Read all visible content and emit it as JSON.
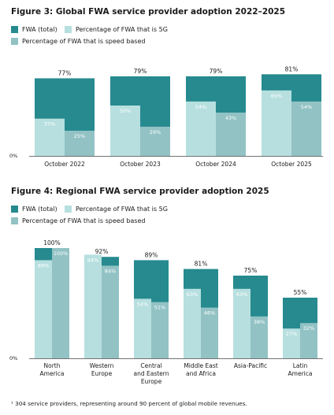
{
  "footnote": "¹ 304 service providers, representing around 90 percent of global mobile revenues.",
  "colors": {
    "total": "#268a8f",
    "fivegee": "#b7dfdf",
    "speed": "#92c2c4",
    "axis": "#444444"
  },
  "legend": {
    "total": "FWA (total)",
    "fivegee": "Percentage of FWA that is 5G",
    "speed": "Percentage of FWA that is speed based"
  },
  "chart_data": [
    {
      "type": "bar",
      "title": "Figure 3: Global FWA service provider adoption 2022–2025",
      "categories": [
        "October 2022",
        "October 2023",
        "October 2024",
        "October 2025"
      ],
      "series": [
        {
          "name": "FWA (total)",
          "values": [
            77,
            79,
            79,
            81
          ]
        },
        {
          "name": "Percentage of FWA that is 5G",
          "values": [
            37,
            50,
            54,
            65
          ]
        },
        {
          "name": "Percentage of FWA that is speed based",
          "values": [
            25,
            29,
            43,
            54
          ]
        }
      ],
      "ytick": "0%",
      "ylim": [
        0,
        100
      ],
      "legend_position": "top-left"
    },
    {
      "type": "bar",
      "title": "Figure 4: Regional FWA service provider adoption 2025",
      "categories": [
        [
          "North",
          "America"
        ],
        [
          "Western",
          "Europe"
        ],
        [
          "Central",
          "and Eastern",
          "Europe"
        ],
        [
          "Middle East",
          "and Africa"
        ],
        [
          "Asia-Pacific"
        ],
        [
          "Latin",
          "America"
        ]
      ],
      "series": [
        {
          "name": "FWA (total)",
          "values": [
            100,
            92,
            89,
            81,
            75,
            55
          ]
        },
        {
          "name": "Percentage of FWA that is 5G",
          "values": [
            89,
            94,
            54,
            63,
            63,
            27
          ]
        },
        {
          "name": "Percentage of FWA that is speed based",
          "values": [
            100,
            84,
            51,
            46,
            38,
            32
          ]
        }
      ],
      "ytick": "0%",
      "ylim": [
        0,
        100
      ],
      "legend_position": "top-left"
    }
  ]
}
